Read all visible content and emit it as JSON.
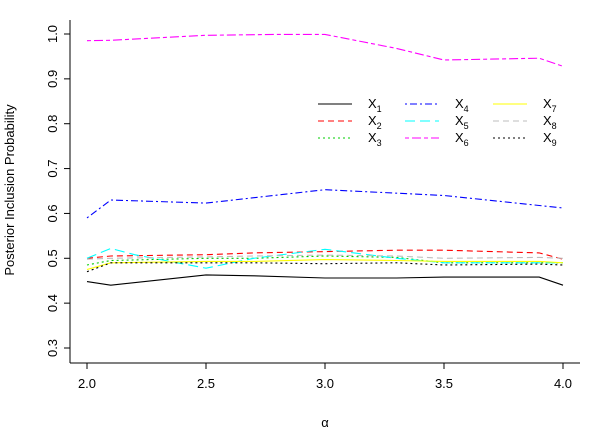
{
  "chart_data": {
    "type": "line",
    "title": "",
    "xlabel": "α",
    "ylabel": "Posterior Inclusion Probability",
    "xlim": [
      2.0,
      4.0
    ],
    "ylim": [
      0.3,
      1.0
    ],
    "x_ticks": [
      "2.0",
      "2.5",
      "3.0",
      "3.5",
      "4.0"
    ],
    "y_ticks": [
      "0.3",
      "0.4",
      "0.5",
      "0.6",
      "0.7",
      "0.8",
      "0.9",
      "1.0"
    ],
    "grid": false,
    "legend_position": "top-right",
    "series": [
      {
        "name": "X1",
        "color": "#000000",
        "dash": "solid",
        "x": [
          2.0,
          2.1,
          2.5,
          2.7,
          3.0,
          3.3,
          3.5,
          3.9,
          4.0
        ],
        "y": [
          0.448,
          0.44,
          0.463,
          0.461,
          0.456,
          0.456,
          0.458,
          0.458,
          0.44
        ]
      },
      {
        "name": "X2",
        "color": "#ff0000",
        "dash": "dashed",
        "x": [
          2.0,
          2.1,
          2.5,
          2.7,
          3.0,
          3.3,
          3.5,
          3.9,
          4.0
        ],
        "y": [
          0.5,
          0.505,
          0.508,
          0.512,
          0.515,
          0.518,
          0.518,
          0.512,
          0.498
        ]
      },
      {
        "name": "X3",
        "color": "#00cc00",
        "dash": "dotted",
        "x": [
          2.0,
          2.1,
          2.5,
          2.7,
          3.0,
          3.3,
          3.5,
          3.9,
          4.0
        ],
        "y": [
          0.485,
          0.495,
          0.5,
          0.5,
          0.505,
          0.502,
          0.49,
          0.49,
          0.49
        ]
      },
      {
        "name": "X4",
        "color": "#0000ff",
        "dash": "dotdash",
        "x": [
          2.0,
          2.1,
          2.5,
          3.0,
          3.5,
          4.0
        ],
        "y": [
          0.59,
          0.63,
          0.623,
          0.653,
          0.64,
          0.612
        ]
      },
      {
        "name": "X5",
        "color": "#00ffff",
        "dash": "longdash",
        "x": [
          2.0,
          2.1,
          2.2,
          2.5,
          2.7,
          3.0,
          3.3,
          3.5,
          3.9,
          4.0
        ],
        "y": [
          0.5,
          0.522,
          0.508,
          0.478,
          0.5,
          0.52,
          0.5,
          0.49,
          0.49,
          0.49
        ]
      },
      {
        "name": "X6",
        "color": "#ff00ff",
        "dash": "twodash",
        "x": [
          2.0,
          2.1,
          2.5,
          2.8,
          3.0,
          3.3,
          3.5,
          3.7,
          3.9,
          4.0
        ],
        "y": [
          0.985,
          0.986,
          0.997,
          0.999,
          0.999,
          0.968,
          0.942,
          0.944,
          0.946,
          0.928
        ]
      },
      {
        "name": "X7",
        "color": "#ffff00",
        "dash": "solid",
        "x": [
          2.0,
          2.1,
          2.5,
          2.7,
          3.0,
          3.3,
          3.5,
          3.9,
          4.0
        ],
        "y": [
          0.475,
          0.49,
          0.493,
          0.493,
          0.497,
          0.495,
          0.493,
          0.493,
          0.49
        ]
      },
      {
        "name": "X8",
        "color": "#bebebe",
        "dash": "dashed",
        "x": [
          2.0,
          2.1,
          2.5,
          2.7,
          3.0,
          3.3,
          3.5,
          3.9,
          4.0
        ],
        "y": [
          0.498,
          0.5,
          0.503,
          0.505,
          0.507,
          0.505,
          0.5,
          0.502,
          0.5
        ]
      },
      {
        "name": "X9",
        "color": "#000000",
        "dash": "dotted",
        "x": [
          2.0,
          2.1,
          2.5,
          2.7,
          3.0,
          3.3,
          3.5,
          3.9,
          4.0
        ],
        "y": [
          0.47,
          0.49,
          0.49,
          0.49,
          0.488,
          0.49,
          0.485,
          0.487,
          0.485
        ]
      }
    ]
  }
}
